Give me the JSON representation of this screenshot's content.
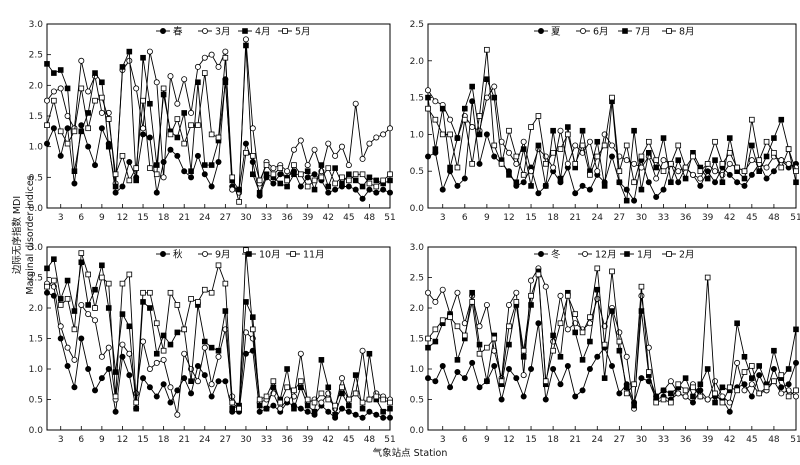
{
  "figure": {
    "ylabel_cn": "边际无序指数 MDI",
    "ylabel_en": "Marginal disorder indices",
    "xlabel": "气象站点 Station"
  },
  "chart_data": [
    {
      "type": "line",
      "panel": "spring",
      "xlabel": "气象站点 Station",
      "ylabel": "边际无序指数 MDI",
      "xlim": [
        1,
        51
      ],
      "ylim": [
        0,
        3.0
      ],
      "xticks": [
        3,
        6,
        9,
        12,
        15,
        18,
        21,
        24,
        27,
        30,
        33,
        36,
        39,
        42,
        45,
        48,
        51
      ],
      "yticks": [
        0,
        0.5,
        1.0,
        1.5,
        2.0,
        2.5,
        3.0
      ],
      "ytick_labels": [
        "0.0",
        "0.5",
        "1.0",
        "1.5",
        "2.0",
        "2.5",
        "3.0"
      ],
      "legend": "top-center",
      "series": [
        {
          "name": "春",
          "marker": "filled-circle",
          "values": [
            1.05,
            1.3,
            0.85,
            1.3,
            0.4,
            1.35,
            1.0,
            0.7,
            1.3,
            1.05,
            0.25,
            0.35,
            0.75,
            0.5,
            1.2,
            1.15,
            0.25,
            0.75,
            0.95,
            0.85,
            0.6,
            0.5,
            0.85,
            0.55,
            0.35,
            0.75,
            2.1,
            0.35,
            0.3,
            1.05,
            0.75,
            0.2,
            0.5,
            0.4,
            0.55,
            0.5,
            0.6,
            0.35,
            0.5,
            0.55,
            0.45,
            0.25,
            0.3,
            0.35,
            0.35,
            0.3,
            0.15,
            0.3,
            0.25,
            0.3,
            0.25
          ]
        },
        {
          "name": "3月",
          "marker": "open-circle",
          "values": [
            1.75,
            1.9,
            1.95,
            1.5,
            1.3,
            2.4,
            1.9,
            2.15,
            1.55,
            1.55,
            0.4,
            2.25,
            2.4,
            1.95,
            1.3,
            2.55,
            2.05,
            0.5,
            2.15,
            1.7,
            2.1,
            1.55,
            2.3,
            2.45,
            2.5,
            2.3,
            2.55,
            0.3,
            0.25,
            2.75,
            1.3,
            0.4,
            0.75,
            0.65,
            0.7,
            0.6,
            0.95,
            1.1,
            0.7,
            0.95,
            0.6,
            1.05,
            0.85,
            1.0,
            0.7,
            1.7,
            0.8,
            1.05,
            1.15,
            1.2,
            1.3
          ]
        },
        {
          "name": "4月",
          "marker": "filled-square",
          "values": [
            2.35,
            2.2,
            2.25,
            1.95,
            0.6,
            1.25,
            1.55,
            2.2,
            2.05,
            1.0,
            0.35,
            2.3,
            2.55,
            0.45,
            2.45,
            1.7,
            0.7,
            1.85,
            1.25,
            1.15,
            1.55,
            0.6,
            2.05,
            0.7,
            0.7,
            1.1,
            2.05,
            0.45,
            0.3,
            2.65,
            0.55,
            0.25,
            0.55,
            0.5,
            0.4,
            0.35,
            0.55,
            0.55,
            0.6,
            0.3,
            0.7,
            0.35,
            0.65,
            0.4,
            0.55,
            0.45,
            0.35,
            0.5,
            0.45,
            0.4,
            0.45
          ]
        },
        {
          "name": "5月",
          "marker": "open-square",
          "values": [
            1.35,
            1.75,
            1.25,
            1.05,
            1.25,
            1.95,
            1.3,
            1.75,
            1.8,
            1.45,
            0.55,
            0.85,
            0.45,
            0.65,
            1.75,
            0.65,
            0.55,
            1.95,
            1.2,
            1.45,
            1.05,
            1.35,
            1.35,
            2.2,
            1.2,
            1.15,
            2.45,
            0.5,
            0.1,
            0.9,
            0.85,
            0.45,
            0.7,
            0.55,
            0.65,
            0.45,
            0.7,
            0.55,
            0.35,
            0.45,
            0.5,
            0.65,
            0.4,
            0.5,
            0.45,
            0.55,
            0.55,
            0.4,
            0.35,
            0.45,
            0.55
          ]
        }
      ]
    },
    {
      "type": "line",
      "panel": "summer",
      "xlabel": "气象站点 Station",
      "ylabel": "边际无序指数 MDI",
      "xlim": [
        1,
        51
      ],
      "ylim": [
        0,
        2.5
      ],
      "xticks": [
        3,
        6,
        9,
        12,
        15,
        18,
        21,
        24,
        27,
        30,
        33,
        36,
        39,
        42,
        45,
        48,
        51
      ],
      "yticks": [
        0,
        0.5,
        1.0,
        1.5,
        2.0,
        2.5
      ],
      "ytick_labels": [
        "0.0",
        "0.5",
        "1.0",
        "1.5",
        "2.0",
        "2.5"
      ],
      "legend": "top-center",
      "series": [
        {
          "name": "夏",
          "marker": "filled-circle",
          "values": [
            0.7,
            0.75,
            0.25,
            0.5,
            0.3,
            0.4,
            1.45,
            0.6,
            1.0,
            0.7,
            0.6,
            0.5,
            0.3,
            0.35,
            0.55,
            0.2,
            0.3,
            0.5,
            0.35,
            0.55,
            0.2,
            0.3,
            0.25,
            0.45,
            0.35,
            0.7,
            0.35,
            0.25,
            0.1,
            0.65,
            0.35,
            0.15,
            0.25,
            0.6,
            0.35,
            0.55,
            0.45,
            0.3,
            0.5,
            0.35,
            0.55,
            0.45,
            0.35,
            0.3,
            0.45,
            0.6,
            0.4,
            0.5,
            0.65,
            0.55,
            0.6
          ]
        },
        {
          "name": "6月",
          "marker": "open-circle",
          "values": [
            1.6,
            1.45,
            1.4,
            1.2,
            0.95,
            1.25,
            1.1,
            1.05,
            1.5,
            1.65,
            0.9,
            0.75,
            0.6,
            0.9,
            0.5,
            0.8,
            0.7,
            0.55,
            1.05,
            0.6,
            0.85,
            0.75,
            0.9,
            0.5,
            1.0,
            0.85,
            0.7,
            0.65,
            0.6,
            0.55,
            0.7,
            0.4,
            0.65,
            0.6,
            0.5,
            0.55,
            0.45,
            0.4,
            0.6,
            0.5,
            0.45,
            0.6,
            0.55,
            0.5,
            0.65,
            0.6,
            0.55,
            0.7,
            0.65,
            0.6,
            0.55
          ]
        },
        {
          "name": "7月",
          "marker": "filled-square",
          "values": [
            1.5,
            0.8,
            1.35,
            0.55,
            0.95,
            1.35,
            1.65,
            1.0,
            1.75,
            1.5,
            0.65,
            0.45,
            0.35,
            0.8,
            0.3,
            0.85,
            0.3,
            1.05,
            0.4,
            1.1,
            0.55,
            1.05,
            0.5,
            0.9,
            0.3,
            1.45,
            0.35,
            0.1,
            1.05,
            0.25,
            0.75,
            0.55,
            0.95,
            0.35,
            0.65,
            0.4,
            0.75,
            0.55,
            0.4,
            0.65,
            0.35,
            0.95,
            0.5,
            0.4,
            0.85,
            0.5,
            0.7,
            0.95,
            1.2,
            0.8,
            0.35
          ]
        },
        {
          "name": "8月",
          "marker": "open-square",
          "values": [
            1.35,
            1.2,
            1.0,
            1.0,
            0.55,
            1.2,
            0.6,
            1.25,
            2.15,
            0.85,
            0.6,
            1.05,
            0.7,
            0.45,
            1.1,
            1.25,
            0.6,
            0.75,
            0.8,
            1.0,
            0.6,
            0.85,
            0.45,
            0.7,
            0.85,
            1.5,
            0.5,
            0.85,
            0.35,
            0.7,
            0.9,
            0.65,
            0.5,
            0.6,
            0.85,
            0.55,
            0.7,
            0.5,
            0.6,
            0.9,
            0.6,
            0.75,
            0.55,
            0.5,
            1.2,
            0.65,
            0.9,
            0.75,
            0.55,
            0.8,
            0.5
          ]
        }
      ]
    },
    {
      "type": "line",
      "panel": "autumn",
      "xlabel": "气象站点 Station",
      "ylabel": "边际无序指数 MDI",
      "xlim": [
        1,
        51
      ],
      "ylim": [
        0,
        3.0
      ],
      "xticks": [
        3,
        6,
        9,
        12,
        15,
        18,
        21,
        24,
        27,
        30,
        33,
        36,
        39,
        42,
        45,
        48,
        51
      ],
      "yticks": [
        0,
        0.5,
        1.0,
        1.5,
        2.0,
        2.5,
        3.0
      ],
      "ytick_labels": [
        "0.0",
        "0.5",
        "1.0",
        "1.5",
        "2.0",
        "2.5",
        "3.0"
      ],
      "legend": "top-center",
      "series": [
        {
          "name": "秋",
          "marker": "filled-circle",
          "values": [
            2.25,
            2.2,
            1.5,
            1.05,
            0.7,
            1.5,
            1.0,
            0.65,
            0.85,
            1.0,
            0.3,
            1.2,
            0.9,
            0.35,
            0.85,
            0.7,
            0.55,
            0.75,
            0.45,
            0.65,
            0.85,
            0.6,
            1.05,
            0.9,
            0.55,
            0.8,
            0.8,
            0.3,
            0.3,
            1.25,
            1.3,
            0.3,
            0.35,
            0.4,
            0.3,
            0.45,
            0.4,
            0.35,
            0.3,
            0.25,
            0.4,
            0.3,
            0.2,
            0.35,
            0.3,
            0.25,
            0.2,
            0.3,
            0.25,
            0.2,
            0.2
          ]
        },
        {
          "name": "9月",
          "marker": "open-circle",
          "values": [
            2.4,
            2.35,
            1.7,
            1.35,
            1.15,
            2.05,
            1.9,
            1.8,
            1.2,
            1.35,
            0.5,
            1.4,
            1.25,
            0.6,
            1.45,
            1.0,
            1.1,
            1.15,
            0.7,
            0.25,
            1.25,
            1.0,
            0.8,
            1.35,
            0.75,
            1.2,
            1.65,
            0.55,
            0.35,
            1.6,
            1.5,
            0.45,
            0.5,
            0.6,
            0.35,
            0.5,
            0.55,
            1.25,
            0.45,
            0.5,
            0.45,
            0.6,
            0.35,
            0.85,
            0.5,
            0.6,
            1.3,
            0.5,
            0.6,
            0.55,
            0.5
          ]
        },
        {
          "name": "10月",
          "marker": "filled-square",
          "values": [
            2.65,
            2.8,
            2.15,
            2.45,
            1.95,
            2.75,
            2.05,
            2.3,
            2.7,
            2.0,
            0.95,
            1.9,
            1.7,
            0.35,
            2.1,
            2.0,
            1.25,
            1.55,
            1.4,
            1.6,
            1.65,
            0.8,
            2.05,
            1.45,
            1.35,
            1.3,
            1.95,
            0.35,
            0.4,
            2.1,
            1.85,
            0.4,
            0.35,
            0.7,
            0.5,
            1.0,
            0.35,
            0.7,
            0.4,
            0.3,
            1.15,
            0.7,
            0.25,
            0.6,
            0.4,
            0.9,
            0.35,
            1.25,
            0.5,
            0.3,
            0.35
          ]
        },
        {
          "name": "11月",
          "marker": "open-square",
          "values": [
            2.35,
            2.45,
            2.05,
            2.15,
            1.65,
            2.9,
            2.55,
            2.0,
            2.5,
            2.4,
            0.55,
            2.4,
            2.55,
            0.45,
            2.25,
            2.25,
            1.75,
            1.3,
            2.25,
            2.05,
            1.65,
            2.15,
            2.1,
            2.3,
            2.25,
            2.7,
            2.4,
            0.45,
            0.35,
            2.95,
            1.65,
            0.5,
            0.55,
            0.8,
            0.45,
            0.7,
            0.65,
            0.8,
            0.5,
            0.45,
            0.6,
            0.5,
            0.4,
            0.7,
            0.5,
            0.6,
            0.45,
            0.5,
            0.55,
            0.5,
            0.45
          ]
        }
      ]
    },
    {
      "type": "line",
      "panel": "winter",
      "xlabel": "气象站点 Station",
      "ylabel": "边际无序指数 MDI",
      "xlim": [
        1,
        51
      ],
      "ylim": [
        0,
        3.0
      ],
      "xticks": [
        3,
        6,
        9,
        12,
        15,
        18,
        21,
        24,
        27,
        30,
        33,
        36,
        39,
        42,
        45,
        48,
        51
      ],
      "yticks": [
        0,
        0.5,
        1.0,
        1.5,
        2.0,
        2.5,
        3.0
      ],
      "ytick_labels": [
        "0.0",
        "0.5",
        "1.0",
        "1.5",
        "2.0",
        "2.5",
        "3.0"
      ],
      "legend": "top-center",
      "series": [
        {
          "name": "冬",
          "marker": "filled-circle",
          "values": [
            0.85,
            0.8,
            1.05,
            0.7,
            0.95,
            0.85,
            1.1,
            0.7,
            0.8,
            1.05,
            0.5,
            1.0,
            0.85,
            0.55,
            1.0,
            1.75,
            0.5,
            1.0,
            0.75,
            1.05,
            0.55,
            0.65,
            1.0,
            1.2,
            1.35,
            1.05,
            0.6,
            0.75,
            0.45,
            0.85,
            0.8,
            0.5,
            0.55,
            0.5,
            0.6,
            0.55,
            0.45,
            0.65,
            0.5,
            0.55,
            0.5,
            0.3,
            0.7,
            0.75,
            0.55,
            0.9,
            0.65,
            1.0,
            0.7,
            0.75,
            1.1
          ]
        },
        {
          "name": "12月",
          "marker": "open-circle",
          "values": [
            2.25,
            2.1,
            2.3,
            1.9,
            2.25,
            1.75,
            2.2,
            1.7,
            2.05,
            1.3,
            0.85,
            2.05,
            2.25,
            0.9,
            2.45,
            2.65,
            2.35,
            1.45,
            2.2,
            1.65,
            1.75,
            1.65,
            1.75,
            2.15,
            1.7,
            2.0,
            1.6,
            1.2,
            0.35,
            2.2,
            1.35,
            0.55,
            0.65,
            0.8,
            0.6,
            0.55,
            0.75,
            0.55,
            0.5,
            0.8,
            0.55,
            0.45,
            1.1,
            0.65,
            0.75,
            0.6,
            0.65,
            0.8,
            0.6,
            0.65,
            0.55
          ]
        },
        {
          "name": "1月",
          "marker": "filled-square",
          "values": [
            1.35,
            1.45,
            1.75,
            1.9,
            1.15,
            1.5,
            2.25,
            1.4,
            0.8,
            1.55,
            0.75,
            1.4,
            2.05,
            1.2,
            2.05,
            2.6,
            0.75,
            1.55,
            1.2,
            2.25,
            1.6,
            1.15,
            1.45,
            2.3,
            0.85,
            1.95,
            1.3,
            0.7,
            0.4,
            1.95,
            0.9,
            0.55,
            0.65,
            0.6,
            0.7,
            0.85,
            0.55,
            0.75,
            1.0,
            0.45,
            0.7,
            0.65,
            1.75,
            1.2,
            0.85,
            1.05,
            0.75,
            1.3,
            0.85,
            1.0,
            1.65
          ]
        },
        {
          "name": "2月",
          "marker": "open-square",
          "values": [
            1.5,
            1.65,
            1.8,
            1.85,
            1.7,
            1.55,
            2.1,
            1.25,
            1.35,
            1.5,
            0.8,
            1.7,
            2.1,
            1.3,
            2.2,
            2.55,
            0.8,
            1.3,
            1.75,
            2.2,
            1.9,
            1.6,
            1.85,
            2.65,
            1.4,
            2.6,
            1.45,
            0.6,
            0.75,
            2.35,
            0.95,
            0.45,
            0.5,
            0.45,
            0.75,
            0.65,
            0.7,
            0.55,
            2.5,
            0.6,
            0.45,
            0.7,
            0.65,
            0.95,
            1.05,
            0.6,
            0.7,
            0.8,
            0.9,
            0.55,
            0.65
          ]
        }
      ]
    }
  ]
}
